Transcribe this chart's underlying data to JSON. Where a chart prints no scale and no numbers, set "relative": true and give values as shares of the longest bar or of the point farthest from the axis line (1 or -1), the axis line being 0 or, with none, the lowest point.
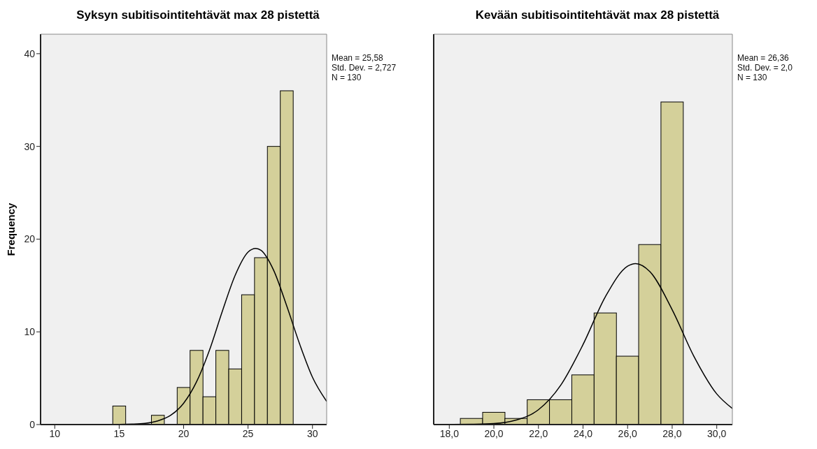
{
  "chart_data": [
    {
      "type": "histogram",
      "title": "Syksyn subitisointitehtävät max 28 pistettä",
      "ylabel": "Frequency",
      "xlim": [
        8.9,
        31.1
      ],
      "xticks": [
        10,
        15,
        20,
        25,
        30
      ],
      "ylim": [
        0,
        42.1
      ],
      "yticks": [
        0,
        10,
        20,
        30,
        40
      ],
      "grid": false,
      "annotations": [
        "Mean = 25,58",
        "Std. Dev. = 2,727",
        "N = 130"
      ],
      "series": [
        {
          "color": "#d4d09a",
          "bins": [
            14.5,
            15.5,
            16.5,
            17.5,
            18.5,
            19.5,
            20.5,
            21.5,
            22.5,
            23.5,
            24.5,
            25.5,
            26.5,
            27.5,
            28.5
          ],
          "values": [
            2,
            0,
            0,
            1,
            0,
            4,
            8,
            3,
            8,
            6,
            14,
            18,
            30,
            36
          ]
        },
        {
          "type": "line",
          "color": "#000000",
          "x": [
            8.9,
            14,
            16,
            17,
            18,
            19,
            20,
            21,
            22,
            23,
            24,
            25,
            25.6,
            26,
            27,
            28,
            29,
            30,
            31.1
          ],
          "values": [
            0,
            0,
            0.05,
            0.13,
            0.4,
            1,
            2.3,
            4.6,
            8,
            12.2,
            16.1,
            18.6,
            19,
            18.8,
            16.6,
            12.8,
            8.7,
            5.1,
            2.5
          ]
        }
      ]
    },
    {
      "type": "histogram",
      "title": "Kevään subitisointitehtävät max 28 pistettä",
      "relative": true,
      "xlim": [
        17.3,
        30.7
      ],
      "xticks": [
        {
          "value": 18,
          "label": "18,0"
        },
        {
          "value": 20,
          "label": "20,0"
        },
        {
          "value": 22,
          "label": "22,0"
        },
        {
          "value": 24,
          "label": "24,0"
        },
        {
          "value": 26,
          "label": "26,0"
        },
        {
          "value": 28,
          "label": "28,0"
        },
        {
          "value": 30,
          "label": "30,0"
        }
      ],
      "grid": false,
      "annotations": [
        "Mean = 26,36",
        "Std. Dev. = 2,0",
        "N = 130"
      ],
      "series": [
        {
          "color": "#d4d09a",
          "bins": [
            18.5,
            19.5,
            20.5,
            21.5,
            22.5,
            23.5,
            24.5,
            25.5,
            26.5,
            27.5,
            28.5
          ],
          "values": [
            0.019,
            0.038,
            0.019,
            0.077,
            0.077,
            0.154,
            0.346,
            0.212,
            0.558,
            1
          ]
        },
        {
          "type": "line",
          "color": "#000000",
          "x": [
            17.3,
            19,
            20,
            21,
            22,
            23,
            24,
            25,
            26,
            26.36,
            27,
            28,
            29,
            30,
            30.7
          ],
          "values": [
            0,
            0.001,
            0.003,
            0.014,
            0.046,
            0.122,
            0.248,
            0.396,
            0.491,
            0.499,
            0.474,
            0.356,
            0.208,
            0.095,
            0.05
          ]
        }
      ]
    }
  ]
}
